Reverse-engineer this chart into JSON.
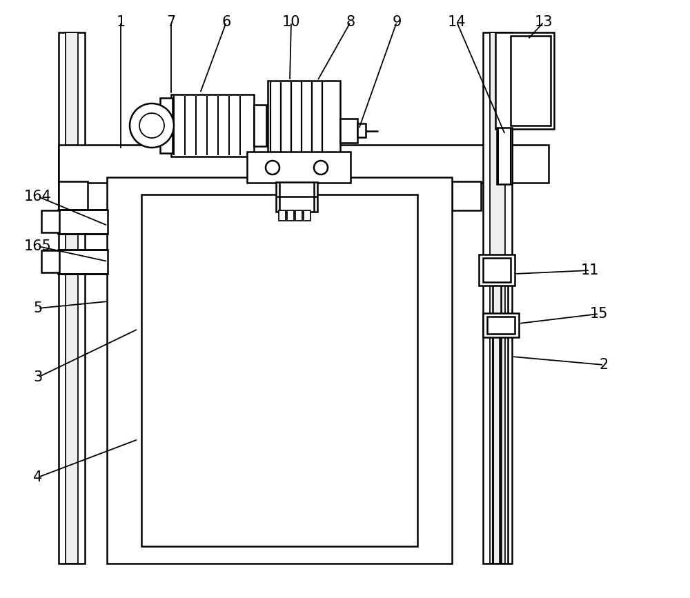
{
  "bg_color": "#ffffff",
  "line_color": "#000000",
  "lw": 1.5,
  "fig_width": 10.0,
  "fig_height": 8.67
}
